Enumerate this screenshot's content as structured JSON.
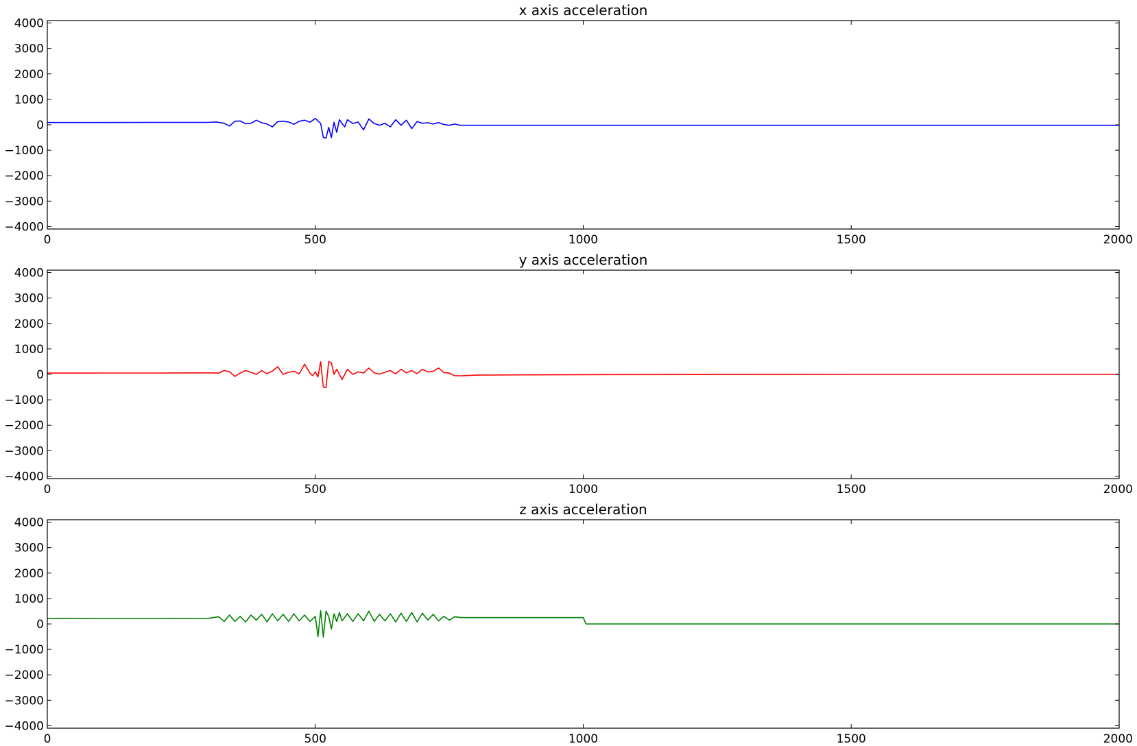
{
  "chart_data": [
    {
      "type": "line",
      "title": "x axis acceleration",
      "xlim": [
        0,
        2000
      ],
      "ylim": [
        -4096,
        4096
      ],
      "xticks": [
        0,
        500,
        1000,
        1500,
        2000
      ],
      "xtick_labels": [
        "0",
        "500",
        "1000",
        "1500",
        "2000"
      ],
      "yticks": [
        4000,
        3000,
        2000,
        1000,
        0,
        -1000,
        -2000,
        -3000,
        -4000
      ],
      "ytick_labels": [
        "4000",
        "3000",
        "2000",
        "1000",
        "0",
        "−1000",
        "−2000",
        "−3000",
        "−4000"
      ],
      "grid": false,
      "series": [
        {
          "color": "#0000ff",
          "x": [
            0,
            100,
            200,
            300,
            315,
            330,
            340,
            350,
            360,
            370,
            380,
            390,
            400,
            410,
            420,
            430,
            440,
            450,
            460,
            470,
            480,
            490,
            500,
            505,
            510,
            515,
            520,
            525,
            530,
            535,
            540,
            545,
            550,
            555,
            560,
            570,
            580,
            590,
            600,
            610,
            620,
            630,
            640,
            650,
            660,
            670,
            680,
            690,
            700,
            710,
            720,
            730,
            740,
            750,
            760,
            770,
            800,
            900,
            1000,
            1500,
            2000
          ],
          "y": [
            90,
            90,
            95,
            95,
            110,
            60,
            -50,
            140,
            150,
            40,
            60,
            180,
            80,
            30,
            -80,
            120,
            140,
            110,
            20,
            140,
            180,
            100,
            250,
            150,
            50,
            -500,
            -520,
            -100,
            -500,
            100,
            -300,
            200,
            50,
            -80,
            200,
            50,
            110,
            -200,
            230,
            50,
            -20,
            60,
            -80,
            200,
            -20,
            180,
            -150,
            130,
            60,
            80,
            30,
            90,
            10,
            -20,
            30,
            -20,
            -20,
            -20,
            -20,
            -20,
            -20
          ]
        }
      ]
    },
    {
      "type": "line",
      "title": "y axis acceleration",
      "xlim": [
        0,
        2000
      ],
      "ylim": [
        -4096,
        4096
      ],
      "xticks": [
        0,
        500,
        1000,
        1500,
        2000
      ],
      "xtick_labels": [
        "0",
        "500",
        "1000",
        "1500",
        "2000"
      ],
      "yticks": [
        4000,
        3000,
        2000,
        1000,
        0,
        -1000,
        -2000,
        -3000,
        -4000
      ],
      "ytick_labels": [
        "4000",
        "3000",
        "2000",
        "1000",
        "0",
        "−1000",
        "−2000",
        "−3000",
        "−4000"
      ],
      "grid": false,
      "series": [
        {
          "color": "#ff0000",
          "x": [
            0,
            100,
            200,
            300,
            320,
            330,
            340,
            350,
            360,
            370,
            380,
            390,
            400,
            410,
            420,
            430,
            440,
            450,
            460,
            470,
            480,
            490,
            495,
            500,
            505,
            510,
            515,
            520,
            525,
            530,
            535,
            540,
            550,
            560,
            570,
            580,
            590,
            600,
            610,
            620,
            630,
            640,
            650,
            660,
            670,
            680,
            690,
            700,
            710,
            720,
            730,
            740,
            750,
            760,
            770,
            800,
            900,
            1000,
            1500,
            2000
          ],
          "y": [
            50,
            55,
            55,
            60,
            50,
            150,
            100,
            -80,
            50,
            150,
            80,
            0,
            150,
            30,
            130,
            300,
            0,
            80,
            120,
            20,
            400,
            50,
            -50,
            100,
            -100,
            500,
            -500,
            -520,
            500,
            450,
            0,
            200,
            -200,
            200,
            0,
            100,
            50,
            250,
            60,
            10,
            80,
            150,
            20,
            200,
            60,
            150,
            30,
            200,
            100,
            120,
            250,
            70,
            50,
            -50,
            -60,
            -30,
            -20,
            -10,
            0,
            0
          ]
        }
      ]
    },
    {
      "type": "line",
      "title": "z axis acceleration",
      "xlim": [
        0,
        2000
      ],
      "ylim": [
        -4096,
        4096
      ],
      "xticks": [
        0,
        500,
        1000,
        1500,
        2000
      ],
      "xtick_labels": [
        "0",
        "500",
        "1000",
        "1500",
        "2000"
      ],
      "yticks": [
        4000,
        3000,
        2000,
        1000,
        0,
        -1000,
        -2000,
        -3000,
        -4000
      ],
      "ytick_labels": [
        "4000",
        "3000",
        "2000",
        "1000",
        "0",
        "−1000",
        "−2000",
        "−3000",
        "−4000"
      ],
      "grid": false,
      "series": [
        {
          "color": "#008000",
          "x": [
            0,
            100,
            200,
            300,
            320,
            330,
            340,
            350,
            360,
            370,
            380,
            390,
            400,
            410,
            420,
            430,
            440,
            450,
            460,
            470,
            480,
            490,
            500,
            505,
            510,
            515,
            520,
            525,
            530,
            535,
            540,
            545,
            550,
            560,
            570,
            580,
            590,
            600,
            610,
            620,
            630,
            640,
            650,
            660,
            670,
            680,
            690,
            700,
            710,
            720,
            730,
            740,
            750,
            760,
            770,
            780,
            800,
            900,
            1000,
            1005,
            1500,
            2000
          ],
          "y": [
            220,
            215,
            215,
            220,
            280,
            100,
            350,
            100,
            300,
            80,
            350,
            150,
            380,
            80,
            400,
            120,
            380,
            100,
            400,
            120,
            350,
            100,
            300,
            -500,
            520,
            -520,
            500,
            300,
            -200,
            400,
            100,
            450,
            120,
            400,
            100,
            400,
            120,
            500,
            100,
            380,
            120,
            400,
            80,
            420,
            100,
            450,
            80,
            420,
            150,
            380,
            120,
            300,
            150,
            280,
            260,
            250,
            250,
            250,
            250,
            0,
            0,
            0
          ]
        }
      ]
    }
  ]
}
